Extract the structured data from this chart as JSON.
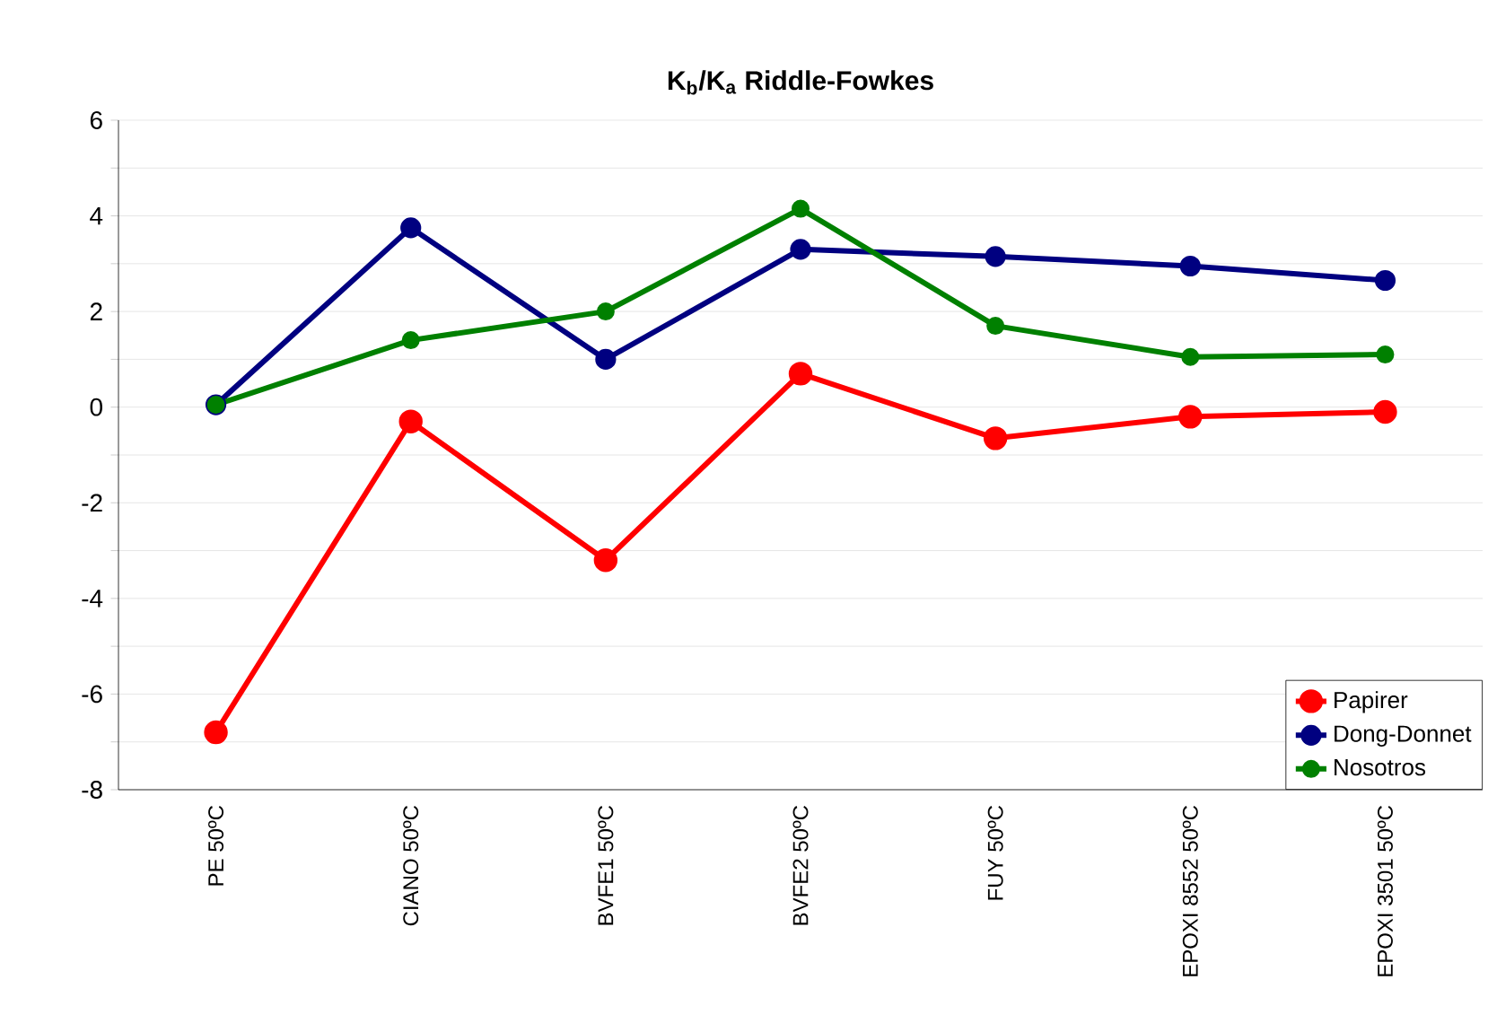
{
  "chart_data": {
    "type": "line",
    "title": "K$_{b}$/K$_{a}$ Riddle-Fowkes",
    "categories": [
      "PE 50ºC",
      "CIANO 50ºC",
      "BVFE1 50ºC",
      "BVFE2 50ºC",
      "FUY 50ºC",
      "EPOXI 8552 50ºC",
      "EPOXI 3501 50ºC"
    ],
    "series": [
      {
        "name": "Papirer",
        "color": "#ff0000",
        "values": [
          -6.8,
          -0.3,
          -3.2,
          0.7,
          -0.65,
          -0.2,
          -0.1
        ]
      },
      {
        "name": "Dong-Donnet",
        "color": "#000080",
        "values": [
          0.05,
          3.75,
          1.0,
          3.3,
          3.15,
          2.95,
          2.65
        ]
      },
      {
        "name": "Nosotros",
        "color": "#008000",
        "values": [
          0.05,
          1.4,
          2.0,
          4.15,
          1.7,
          1.05,
          1.1
        ]
      }
    ],
    "ylim": [
      -8,
      6
    ],
    "yticks": [
      -8,
      {
        "value": -7,
        "label": null
      },
      -6,
      {
        "value": -5,
        "label": null
      },
      -4,
      {
        "value": -3,
        "label": null
      },
      -2,
      {
        "value": -1,
        "label": null
      },
      0,
      {
        "value": 1,
        "label": null
      },
      2,
      {
        "value": 3,
        "label": null
      },
      4,
      {
        "value": 5,
        "label": null
      },
      6
    ],
    "grid": "y",
    "legend": "bottom right",
    "marker": "circle",
    "line_style": "solid"
  }
}
